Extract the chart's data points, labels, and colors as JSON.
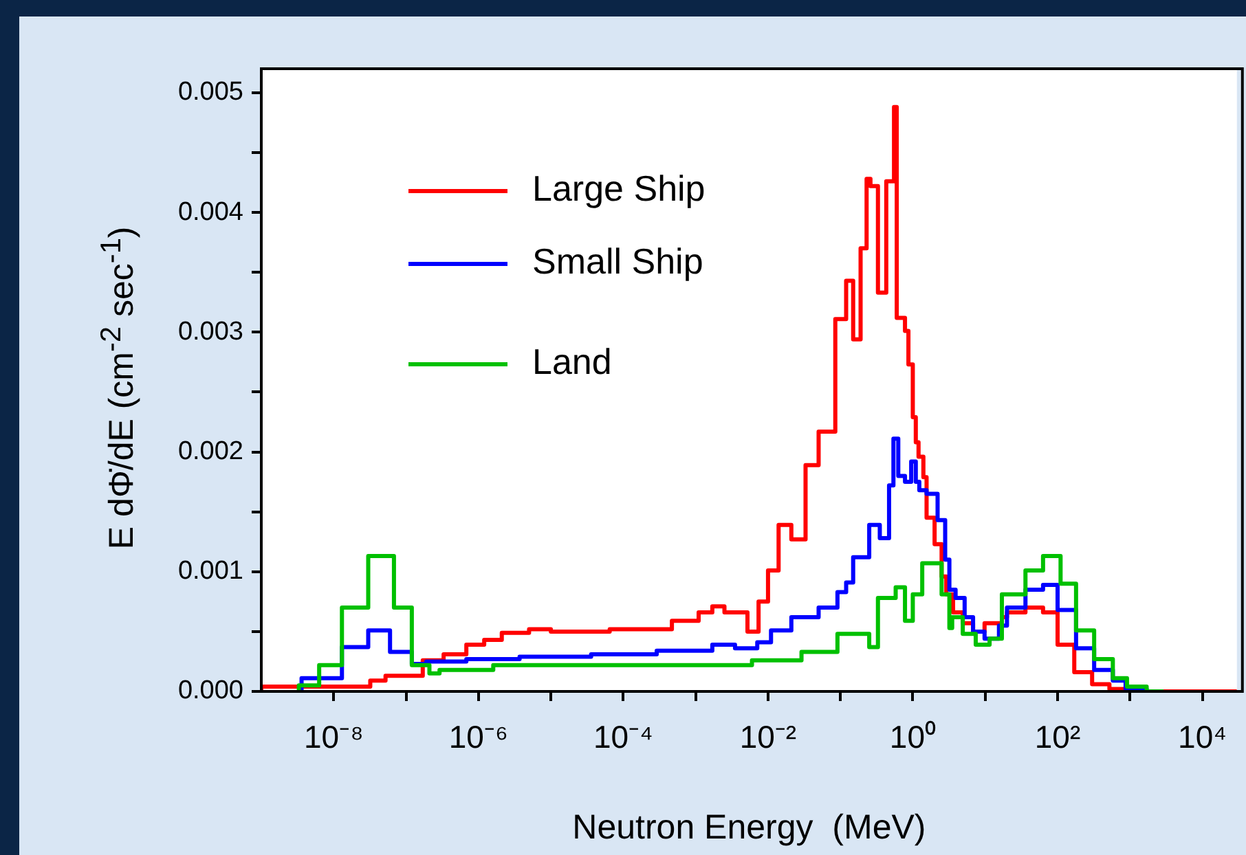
{
  "chart_data": {
    "type": "step",
    "xlabel": "Neutron Energy  (MeV)",
    "ylabel": "E dΦ̇/dE  (cm$^{-2}$ sec$^{-1}$)",
    "log": "x",
    "grid": false,
    "legend": "top left",
    "line_style": "solid",
    "marker": "none",
    "xlim": [
      1e-09,
      30000
    ],
    "xticks": [
      {
        "value": 1e-08,
        "label": "10⁻⁸"
      },
      {
        "value": 1e-07,
        "label": null
      },
      {
        "value": 1e-06,
        "label": "10⁻⁶"
      },
      {
        "value": 1e-05,
        "label": null
      },
      {
        "value": 0.0001,
        "label": "10⁻⁴"
      },
      {
        "value": 0.001,
        "label": null
      },
      {
        "value": 0.01,
        "label": "10⁻²"
      },
      {
        "value": 0.1,
        "label": null
      },
      {
        "value": 1,
        "label": "10⁰"
      },
      {
        "value": 10,
        "label": null
      },
      {
        "value": 100,
        "label": "10²"
      },
      {
        "value": 1000,
        "label": null
      },
      {
        "value": 10000,
        "label": "10⁴"
      }
    ],
    "ylim": [
      0,
      0.0052
    ],
    "yticks": [
      {
        "value": 0,
        "label": "0.000"
      },
      {
        "value": 0.0005,
        "label": null
      },
      {
        "value": 0.001,
        "label": "0.001"
      },
      {
        "value": 0.0015,
        "label": null
      },
      {
        "value": 0.002,
        "label": "0.002"
      },
      {
        "value": 0.0025,
        "label": null
      },
      {
        "value": 0.003,
        "label": "0.003"
      },
      {
        "value": 0.0035,
        "label": null
      },
      {
        "value": 0.004,
        "label": "0.004"
      },
      {
        "value": 0.0045,
        "label": null
      },
      {
        "value": 0.005,
        "label": "0.005"
      }
    ],
    "series": [
      {
        "name": "Large Ship",
        "color": "#ff0000",
        "x": [
          1e-09,
          3.2e-08,
          5.2e-08,
          1.7e-07,
          3.3e-07,
          6.8e-07,
          1.2e-06,
          2.1e-06,
          5e-06,
          1e-05,
          6.5e-05,
          0.00047,
          0.0011,
          0.0017,
          0.0025,
          0.0052,
          0.0074,
          0.01,
          0.014,
          0.021,
          0.033,
          0.05,
          0.085,
          0.12,
          0.15,
          0.19,
          0.23,
          0.26,
          0.33,
          0.43,
          0.55,
          0.6,
          0.78,
          0.87,
          1,
          1.1,
          1.2,
          1.4,
          1.55,
          2,
          2.5,
          2.9,
          3.6,
          4.9,
          6.8,
          9.8,
          17,
          20,
          36,
          63,
          100,
          170,
          300,
          520,
          870,
          1500,
          30000
        ],
        "values": [
          0,
          4e-05,
          9e-05,
          0.00013,
          0.00026,
          0.00031,
          0.00039,
          0.00043,
          0.00049,
          0.00052,
          0.0005,
          0.00052,
          0.00059,
          0.00066,
          0.00071,
          0.00066,
          0.0005,
          0.00075,
          0.00101,
          0.00139,
          0.00127,
          0.00189,
          0.00217,
          0.00311,
          0.00343,
          0.00294,
          0.0037,
          0.00428,
          0.00422,
          0.00333,
          0.00426,
          0.00488,
          0.00312,
          0.00301,
          0.00273,
          0.00229,
          0.00208,
          0.00196,
          0.00179,
          0.00145,
          0.00123,
          0.00096,
          0.00081,
          0.00066,
          0.00057,
          0.0005,
          0.00057,
          0.00062,
          0.00066,
          0.0007,
          0.00066,
          0.00039,
          0.00016,
          6e-05,
          2e-05,
          0,
          0
        ]
      },
      {
        "name": "Small Ship",
        "color": "#0000ff",
        "x": [
          3.6e-09,
          1.3e-08,
          3e-08,
          6e-08,
          1.2e-07,
          1.9e-07,
          6.8e-07,
          3.7e-06,
          3.6e-05,
          0.00029,
          0.0017,
          0.0035,
          0.0071,
          0.011,
          0.021,
          0.05,
          0.091,
          0.12,
          0.15,
          0.25,
          0.35,
          0.47,
          0.54,
          0.63,
          0.78,
          0.95,
          1.1,
          1.23,
          1.55,
          2.2,
          2.8,
          3.2,
          3.9,
          5.2,
          6.8,
          9.8,
          15.5,
          20,
          36,
          63,
          100,
          180,
          320,
          580,
          870,
          1700,
          2900
        ],
        "values": [
          0,
          0.00011,
          0.00037,
          0.00051,
          0.00033,
          0.00023,
          0.00025,
          0.00027,
          0.00029,
          0.00031,
          0.00034,
          0.00039,
          0.00036,
          0.00041,
          0.00051,
          0.00062,
          0.0007,
          0.00083,
          0.00091,
          0.00112,
          0.00139,
          0.00128,
          0.00172,
          0.00211,
          0.0018,
          0.00175,
          0.00192,
          0.00175,
          0.00168,
          0.00165,
          0.00143,
          0.0011,
          0.00085,
          0.00078,
          0.00062,
          0.0005,
          0.00044,
          0.00055,
          0.0007,
          0.00085,
          0.00089,
          0.00068,
          0.00036,
          0.00018,
          9e-05,
          2e-05,
          0
        ]
      },
      {
        "name": "Land",
        "color": "#00c000",
        "x": [
          3.3e-09,
          6.3e-09,
          1.3e-08,
          3e-08,
          6.8e-08,
          1.2e-07,
          2.1e-07,
          2.9e-07,
          1.6e-06,
          0.006,
          0.029,
          0.091,
          0.25,
          0.33,
          0.58,
          0.78,
          1,
          1.35,
          2.5,
          3.2,
          3.5,
          4.9,
          7.4,
          11.5,
          17,
          36,
          63,
          110,
          180,
          320,
          580,
          910,
          1700,
          2900
        ],
        "values": [
          0,
          5e-05,
          0.00022,
          0.0007,
          0.00113,
          0.0007,
          0.00022,
          0.00015,
          0.00018,
          0.00022,
          0.00026,
          0.00033,
          0.00048,
          0.00037,
          0.00078,
          0.00087,
          0.00059,
          0.00081,
          0.00107,
          0.00081,
          0.00053,
          0.00062,
          0.00048,
          0.00039,
          0.00044,
          0.00081,
          0.00101,
          0.00113,
          0.0009,
          0.00051,
          0.00027,
          0.00011,
          4e-05,
          0
        ]
      }
    ]
  }
}
